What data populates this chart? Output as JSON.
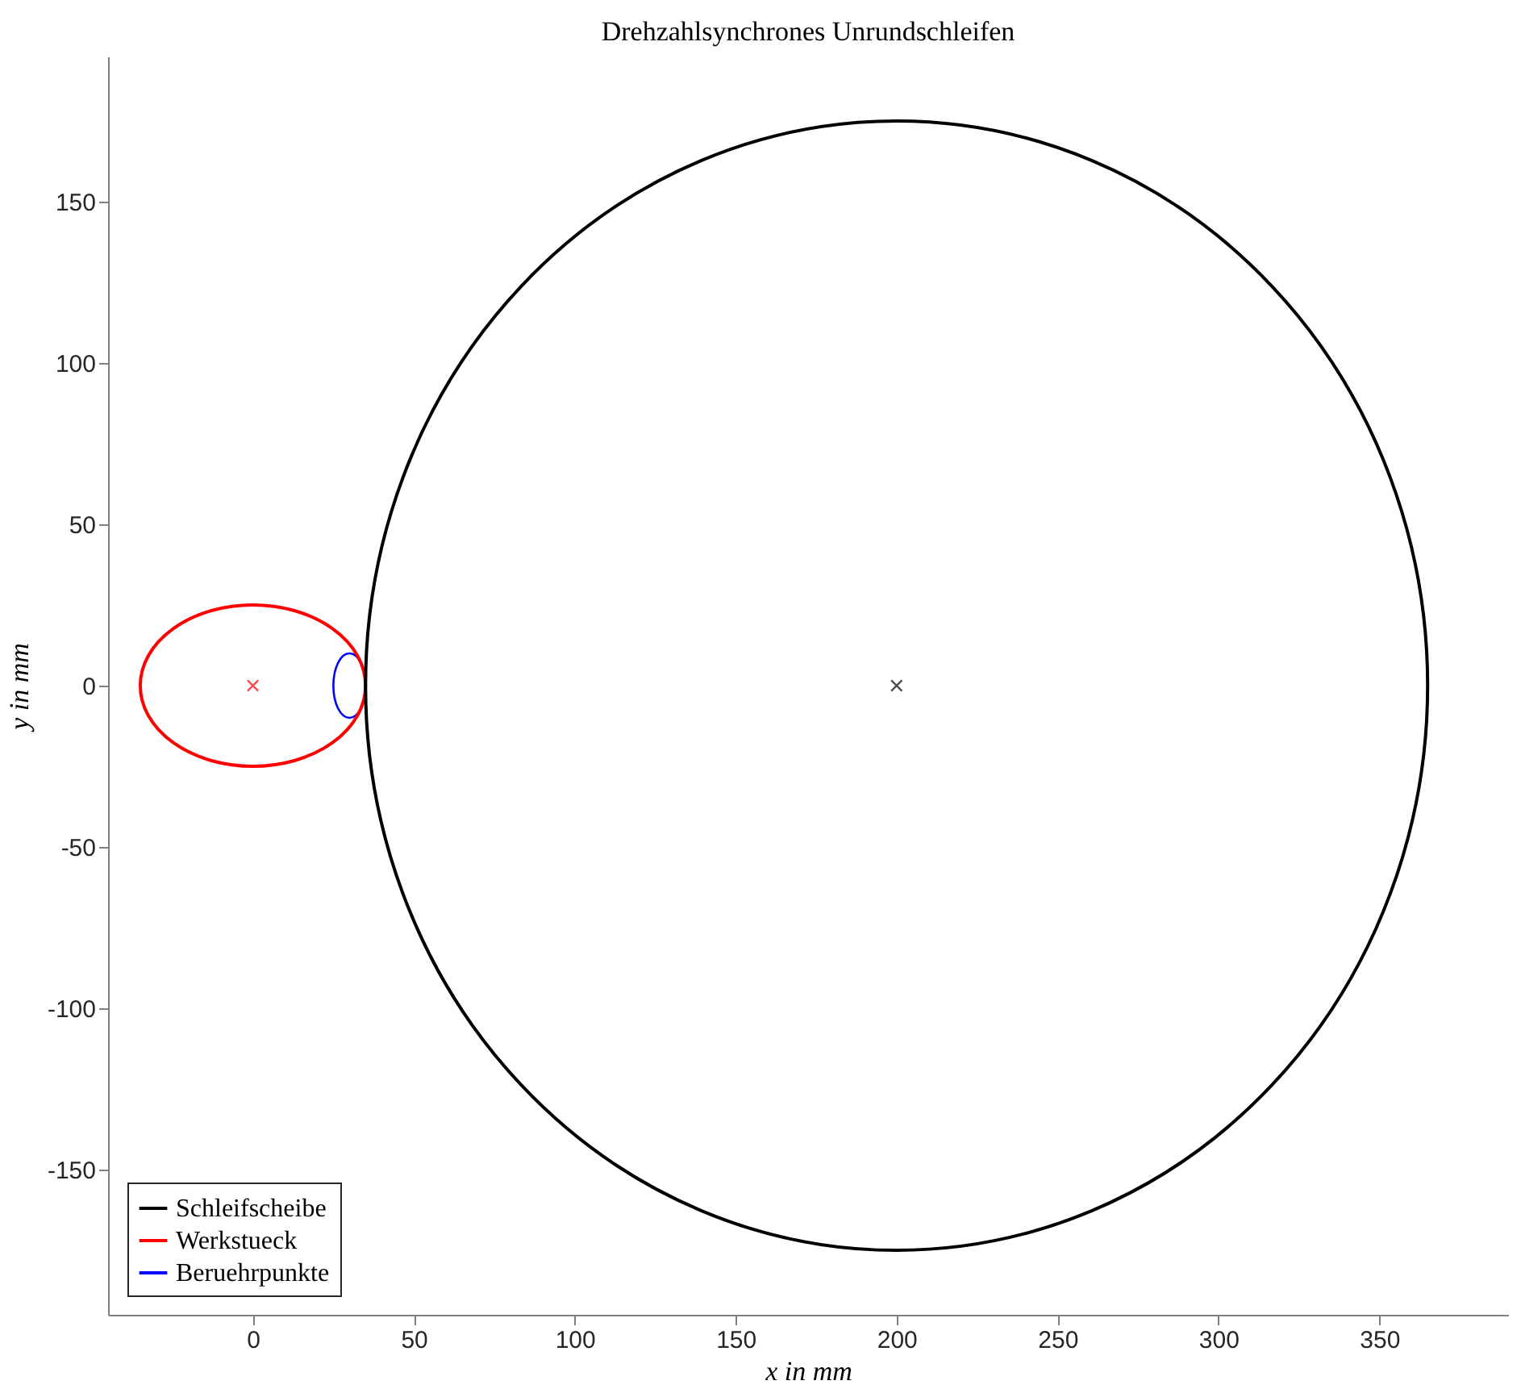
{
  "chart_data": {
    "type": "line",
    "title": "Drehzahlsynchrones Unrundschleifen",
    "xlabel": "x in mm",
    "ylabel": "y in mm",
    "xlim": [
      -45,
      390
    ],
    "ylim": [
      -195,
      195
    ],
    "xticks": [
      0,
      50,
      100,
      150,
      200,
      250,
      300,
      350
    ],
    "yticks": [
      -150,
      -100,
      -50,
      0,
      50,
      100,
      150
    ],
    "grid": false,
    "legend": "bottom left",
    "series": [
      {
        "name": "Schleifscheibe",
        "color": "#000000"
      },
      {
        "name": "Werkstueck",
        "color": "#ff0000"
      },
      {
        "name": "Beruehrpunkte",
        "color": "#0000ff"
      },
      {
        "type": "scatter",
        "marker": "cross",
        "colors": [
          "#ff0000",
          "#000000"
        ],
        "x": [
          0,
          200
        ],
        "values": [
          0,
          0
        ]
      }
    ]
  }
}
